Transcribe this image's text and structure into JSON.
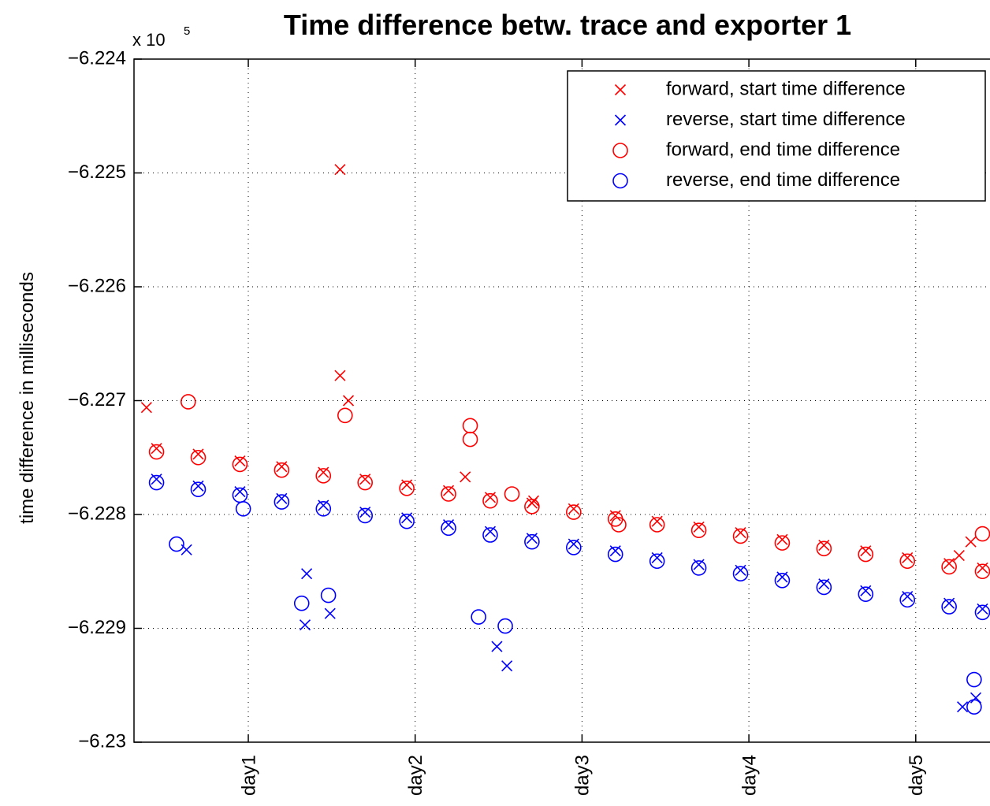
{
  "chart_data": {
    "type": "scatter",
    "title": "Time difference betw. trace and exporter 1",
    "y_label": "time difference in milliseconds",
    "y_multiplier": "x 10",
    "y_multiplier_exponent": "5",
    "xlim": [
      0.315,
      5.445
    ],
    "ylim": [
      -623000,
      -622400
    ],
    "xticks": [
      {
        "value": 1,
        "label": "day1"
      },
      {
        "value": 2,
        "label": "day2"
      },
      {
        "value": 3,
        "label": "day3"
      },
      {
        "value": 4,
        "label": "day4"
      },
      {
        "value": 5,
        "label": "day5"
      }
    ],
    "yticks": [
      {
        "value": -622400,
        "label": "−6.224"
      },
      {
        "value": -622500,
        "label": "−6.225"
      },
      {
        "value": -622600,
        "label": "−6.226"
      },
      {
        "value": -622700,
        "label": "−6.227"
      },
      {
        "value": -622800,
        "label": "−6.228"
      },
      {
        "value": -622900,
        "label": "−6.229"
      },
      {
        "value": -623000,
        "label": "−6.23"
      }
    ],
    "grid": true,
    "legend": "upper right",
    "series": [
      {
        "name": "forward, start time difference",
        "color": "#ff0000",
        "marker": "x",
        "x": [
          0.45,
          0.7,
          0.95,
          1.2,
          1.45,
          1.7,
          1.95,
          2.2,
          2.45,
          2.7,
          2.95,
          3.2,
          3.45,
          3.7,
          3.95,
          4.2,
          4.45,
          4.7,
          4.95,
          5.2,
          5.4,
          0.39,
          1.55,
          1.55,
          1.6,
          2.3,
          5.26,
          5.33,
          2.71
        ],
        "values": [
          -622742,
          -622747,
          -622753,
          -622758,
          -622763,
          -622769,
          -622774,
          -622779,
          -622785,
          -622790,
          -622795,
          -622801,
          -622806,
          -622811,
          -622816,
          -622822,
          -622827,
          -622832,
          -622838,
          -622843,
          -622847,
          -622706,
          -622497,
          -622678,
          -622700,
          -622767,
          -622836,
          -622824,
          -622788
        ]
      },
      {
        "name": "reverse, start time difference",
        "color": "#0000ff",
        "marker": "x",
        "x": [
          0.45,
          0.7,
          0.95,
          1.2,
          1.45,
          1.7,
          1.95,
          2.2,
          2.45,
          2.7,
          2.95,
          3.2,
          3.45,
          3.7,
          3.95,
          4.2,
          4.45,
          4.7,
          4.95,
          5.2,
          5.4,
          1.34,
          1.49,
          2.49,
          2.55,
          0.63,
          5.28,
          5.36,
          1.35
        ],
        "values": [
          -622769,
          -622775,
          -622780,
          -622786,
          -622792,
          -622798,
          -622803,
          -622809,
          -622815,
          -622821,
          -622826,
          -622832,
          -622838,
          -622844,
          -622849,
          -622855,
          -622861,
          -622867,
          -622872,
          -622878,
          -622883,
          -622897,
          -622887,
          -622916,
          -622933,
          -622831,
          -622969,
          -622961,
          -622852
        ]
      },
      {
        "name": "forward, end time difference",
        "color": "#ff0000",
        "marker": "o",
        "x": [
          0.45,
          0.7,
          0.95,
          1.2,
          1.45,
          1.7,
          1.95,
          2.2,
          2.45,
          2.7,
          2.95,
          3.2,
          3.45,
          3.7,
          3.95,
          4.2,
          4.45,
          4.7,
          4.95,
          5.2,
          5.4,
          2.33,
          2.33,
          1.58,
          0.64,
          5.4,
          3.22,
          2.58
        ],
        "values": [
          -622745,
          -622750,
          -622756,
          -622761,
          -622766,
          -622772,
          -622777,
          -622782,
          -622788,
          -622793,
          -622798,
          -622804,
          -622809,
          -622814,
          -622819,
          -622825,
          -622830,
          -622835,
          -622841,
          -622846,
          -622850,
          -622722,
          -622734,
          -622713,
          -622701,
          -622817,
          -622809,
          -622782
        ]
      },
      {
        "name": "reverse, end time difference",
        "color": "#0000ff",
        "marker": "o",
        "x": [
          0.45,
          0.7,
          0.95,
          1.2,
          1.45,
          1.7,
          1.95,
          2.2,
          2.45,
          2.7,
          2.95,
          3.2,
          3.45,
          3.7,
          3.95,
          4.2,
          4.45,
          4.7,
          4.95,
          5.2,
          5.4,
          1.32,
          2.38,
          5.35,
          5.35,
          0.57,
          2.54,
          1.48,
          0.97
        ],
        "values": [
          -622772,
          -622778,
          -622783,
          -622789,
          -622795,
          -622801,
          -622806,
          -622812,
          -622818,
          -622824,
          -622829,
          -622835,
          -622841,
          -622847,
          -622852,
          -622858,
          -622864,
          -622870,
          -622875,
          -622881,
          -622886,
          -622878,
          -622890,
          -622945,
          -622969,
          -622826,
          -622898,
          -622871,
          -622795
        ]
      }
    ]
  }
}
